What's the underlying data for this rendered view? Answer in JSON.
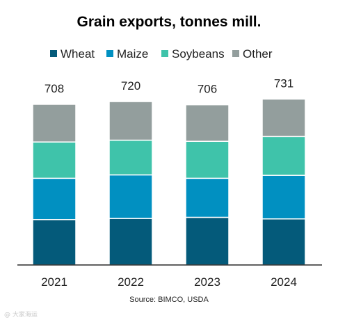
{
  "chart_data": {
    "type": "bar",
    "stacked": true,
    "title": "Grain exports, tonnes mill.",
    "categories": [
      "2021",
      "2022",
      "2023",
      "2024"
    ],
    "series": [
      {
        "name": "Wheat",
        "color": "#045a7a",
        "values": [
          200,
          205,
          210,
          203
        ]
      },
      {
        "name": "Maize",
        "color": "#0190c1",
        "values": [
          182,
          192,
          172,
          192
        ]
      },
      {
        "name": "Soybeans",
        "color": "#3fc3aa",
        "values": [
          160,
          153,
          163,
          171
        ]
      },
      {
        "name": "Other",
        "color": "#939e9d",
        "values": [
          166,
          170,
          161,
          165
        ]
      }
    ],
    "totals": [
      "708",
      "720",
      "706",
      "731"
    ],
    "ylim": [
      0,
      800
    ],
    "xlabel": "",
    "ylabel": "",
    "grid": false,
    "legend_position": "top"
  },
  "source": "Source: BIMCO, USDA",
  "watermark": "@ 大家海运"
}
